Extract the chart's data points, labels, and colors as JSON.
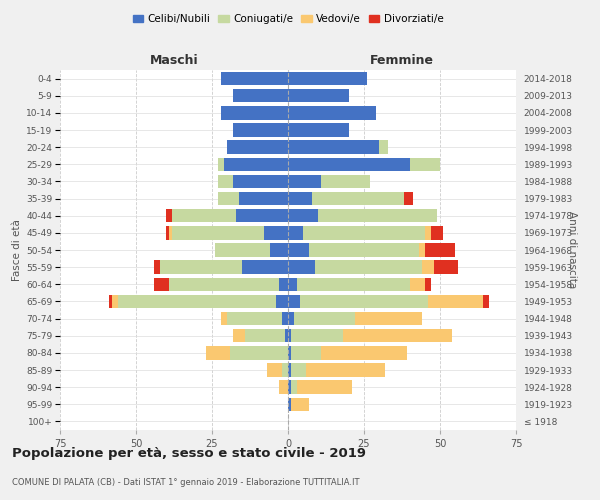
{
  "age_groups": [
    "100+",
    "95-99",
    "90-94",
    "85-89",
    "80-84",
    "75-79",
    "70-74",
    "65-69",
    "60-64",
    "55-59",
    "50-54",
    "45-49",
    "40-44",
    "35-39",
    "30-34",
    "25-29",
    "20-24",
    "15-19",
    "10-14",
    "5-9",
    "0-4"
  ],
  "birth_years": [
    "≤ 1918",
    "1919-1923",
    "1924-1928",
    "1929-1933",
    "1934-1938",
    "1939-1943",
    "1944-1948",
    "1949-1953",
    "1954-1958",
    "1959-1963",
    "1964-1968",
    "1969-1973",
    "1974-1978",
    "1979-1983",
    "1984-1988",
    "1989-1993",
    "1994-1998",
    "1999-2003",
    "2004-2008",
    "2009-2013",
    "2014-2018"
  ],
  "males": {
    "celibi": [
      0,
      0,
      0,
      0,
      0,
      1,
      2,
      4,
      3,
      15,
      6,
      8,
      17,
      16,
      18,
      21,
      20,
      18,
      22,
      18,
      22
    ],
    "coniugati": [
      0,
      0,
      0,
      2,
      19,
      13,
      18,
      52,
      36,
      27,
      18,
      30,
      21,
      7,
      5,
      2,
      0,
      0,
      0,
      0,
      0
    ],
    "vedovi": [
      0,
      0,
      3,
      5,
      8,
      4,
      2,
      2,
      0,
      0,
      0,
      1,
      0,
      0,
      0,
      0,
      0,
      0,
      0,
      0,
      0
    ],
    "divorziati": [
      0,
      0,
      0,
      0,
      0,
      0,
      0,
      1,
      5,
      2,
      0,
      1,
      2,
      0,
      0,
      0,
      0,
      0,
      0,
      0,
      0
    ]
  },
  "females": {
    "nubili": [
      0,
      1,
      1,
      1,
      1,
      1,
      2,
      4,
      3,
      9,
      7,
      5,
      10,
      8,
      11,
      40,
      30,
      20,
      29,
      20,
      26
    ],
    "coniugate": [
      0,
      0,
      2,
      5,
      10,
      17,
      20,
      42,
      37,
      35,
      36,
      40,
      39,
      30,
      16,
      10,
      3,
      0,
      0,
      0,
      0
    ],
    "vedove": [
      0,
      6,
      18,
      26,
      28,
      36,
      22,
      18,
      5,
      4,
      2,
      2,
      0,
      0,
      0,
      0,
      0,
      0,
      0,
      0,
      0
    ],
    "divorziate": [
      0,
      0,
      0,
      0,
      0,
      0,
      0,
      2,
      2,
      8,
      10,
      4,
      0,
      3,
      0,
      0,
      0,
      0,
      0,
      0,
      0
    ]
  },
  "colors": {
    "celibi": "#4472c4",
    "coniugati": "#c6d9a0",
    "vedovi": "#fac870",
    "divorziati": "#e03020"
  },
  "xlim": 75,
  "title": "Popolazione per età, sesso e stato civile - 2019",
  "subtitle": "COMUNE DI PALATA (CB) - Dati ISTAT 1° gennaio 2019 - Elaborazione TUTTITALIA.IT",
  "xlabel_left": "Maschi",
  "xlabel_right": "Femmine",
  "ylabel_left": "Fasce di età",
  "ylabel_right": "Anni di nascita",
  "legend_labels": [
    "Celibi/Nubili",
    "Coniugati/e",
    "Vedovi/e",
    "Divorziati/e"
  ],
  "bg_color": "#f0f0f0",
  "plot_bg_color": "#ffffff"
}
